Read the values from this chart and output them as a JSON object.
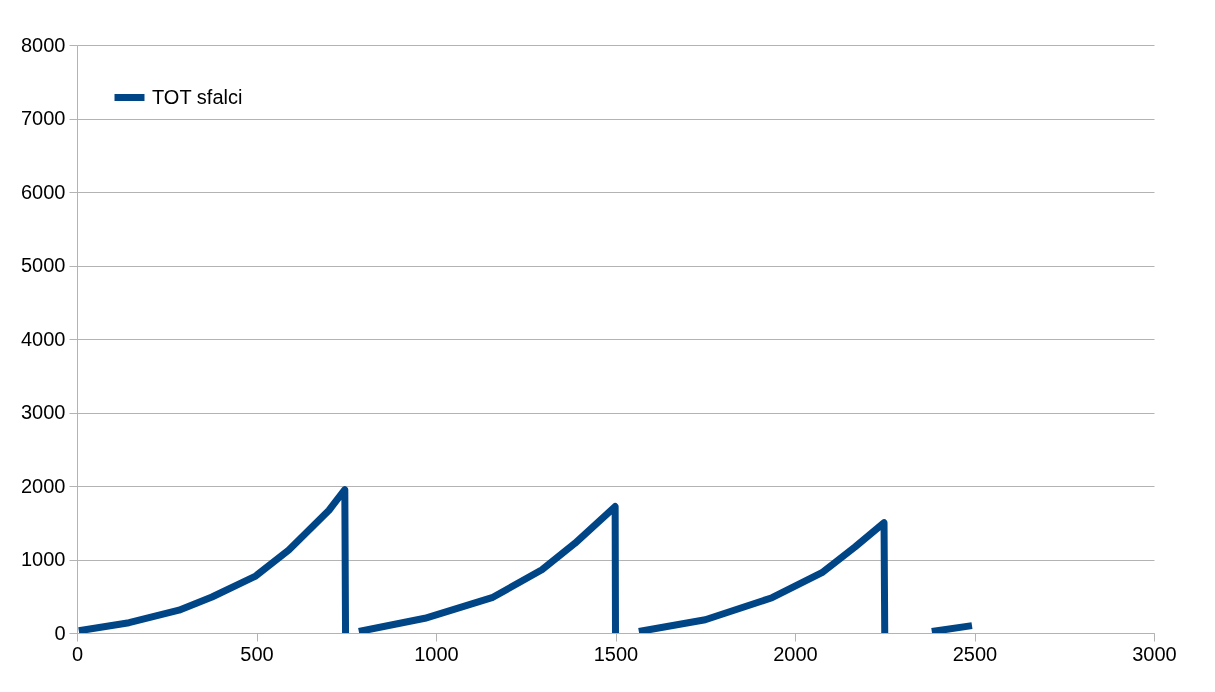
{
  "chart_data": {
    "type": "line",
    "x": [
      5,
      145,
      284,
      376,
      496,
      590,
      702,
      746,
      748,
      760,
      785,
      969,
      1156,
      1295,
      1387,
      1499,
      1500,
      1530,
      1565,
      1750,
      1936,
      2075,
      2167,
      2248,
      2250,
      2320,
      2381,
      2493
    ],
    "series": [
      {
        "name": "TOT sfalci",
        "color": "#004586",
        "values": [
          30,
          140,
          310,
          490,
          770,
          1130,
          1670,
          1950,
          0,
          null,
          20,
          200,
          480,
          860,
          1220,
          1720,
          0,
          null,
          20,
          180,
          480,
          820,
          1170,
          1500,
          0,
          null,
          20,
          100
        ]
      }
    ],
    "xlim": [
      0,
      3000
    ],
    "xticks": [
      0,
      500,
      1000,
      1500,
      2000,
      2500,
      3000
    ],
    "ylim": [
      0,
      8000
    ],
    "yticks": [
      0,
      1000,
      2000,
      3000,
      4000,
      5000,
      6000,
      7000,
      8000
    ],
    "grid": "y",
    "legend": "top left",
    "marker": "none",
    "line_style": "solid"
  }
}
